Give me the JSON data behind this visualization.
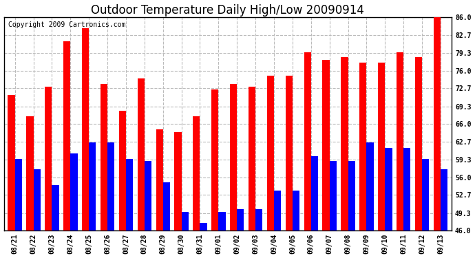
{
  "title": "Outdoor Temperature Daily High/Low 20090914",
  "copyright": "Copyright 2009 Cartronics.com",
  "dates": [
    "08/21",
    "08/22",
    "08/23",
    "08/24",
    "08/25",
    "08/26",
    "08/27",
    "08/28",
    "08/29",
    "08/30",
    "08/31",
    "09/01",
    "09/02",
    "09/03",
    "09/04",
    "09/05",
    "09/06",
    "09/07",
    "09/08",
    "09/09",
    "09/10",
    "09/11",
    "09/12",
    "09/13"
  ],
  "highs": [
    71.5,
    67.5,
    73.0,
    81.5,
    84.0,
    73.5,
    68.5,
    74.5,
    65.0,
    64.5,
    67.5,
    72.5,
    73.5,
    73.0,
    75.0,
    75.0,
    79.5,
    78.0,
    78.5,
    77.5,
    77.5,
    79.5,
    78.5,
    86.0
  ],
  "lows": [
    59.5,
    57.5,
    54.5,
    60.5,
    62.5,
    62.5,
    59.5,
    59.0,
    55.0,
    49.5,
    47.5,
    49.5,
    50.0,
    50.0,
    53.5,
    53.5,
    60.0,
    59.0,
    59.0,
    62.5,
    61.5,
    61.5,
    59.5,
    57.5
  ],
  "high_color": "#ff0000",
  "low_color": "#0000ff",
  "bg_color": "#ffffff",
  "plot_bg_color": "#ffffff",
  "grid_color": "#bbbbbb",
  "title_fontsize": 12,
  "copyright_fontsize": 7,
  "tick_fontsize": 7,
  "ytick_labels": [
    "46.0",
    "49.3",
    "52.7",
    "56.0",
    "59.3",
    "62.7",
    "66.0",
    "69.3",
    "72.7",
    "76.0",
    "79.3",
    "82.7",
    "86.0"
  ],
  "ytick_values": [
    46.0,
    49.3,
    52.7,
    56.0,
    59.3,
    62.7,
    66.0,
    69.3,
    72.7,
    76.0,
    79.3,
    82.7,
    86.0
  ],
  "ymin": 46.0,
  "ymax": 86.0,
  "bar_width": 0.38
}
